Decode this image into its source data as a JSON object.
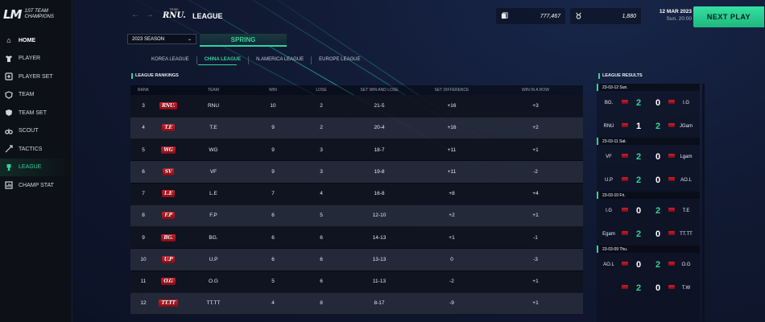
{
  "brand": {
    "logo": "LM",
    "line1": "1ST TEAM",
    "line2": "CHAMPIONS"
  },
  "sidebar": {
    "items": [
      {
        "label": "HOME",
        "icon": "home-icon"
      },
      {
        "label": "PLAYER",
        "icon": "shirt-icon"
      },
      {
        "label": "PLAYER SET",
        "icon": "player-set-icon"
      },
      {
        "label": "TEAM",
        "icon": "team-icon"
      },
      {
        "label": "TEAM SET",
        "icon": "team-set-icon"
      },
      {
        "label": "SCOUT",
        "icon": "binoculars-icon"
      },
      {
        "label": "TACTICS",
        "icon": "tactics-icon"
      },
      {
        "label": "LEAGUE",
        "icon": "trophy-icon"
      },
      {
        "label": "CHAMP STAT",
        "icon": "chart-icon"
      }
    ],
    "active": "LEAGUE"
  },
  "header": {
    "league_logo_text": "RNU.",
    "league_logo_small": "TRIBE",
    "title": "LEAGUE",
    "resource1": {
      "icon": "card-icon",
      "value": "777,467"
    },
    "resource2": {
      "icon": "medal-icon",
      "value": "1,880"
    },
    "date": "12 MAR 2023",
    "time": "Sun. 20:00",
    "next_play": "NEXT PLAY"
  },
  "season": {
    "selected": "2023 SEASON",
    "tab": "SPRING"
  },
  "regions": [
    "KOREA LEAGUE",
    "CHINA LEAGUE",
    "N.AMERICA LEAGUE",
    "EUROPE LEAGUE"
  ],
  "active_region": "CHINA LEAGUE",
  "rankings": {
    "title": "LEAGUE RANKINGS",
    "headers": [
      "RANK",
      "TEAM",
      "WIN",
      "LOSE",
      "SET WIN AND LOSE",
      "SET DIFFERENCE",
      "WIN IN A ROW"
    ],
    "rows": [
      {
        "rank": "3",
        "logo": "RNU.",
        "team": "RNU",
        "win": "10",
        "lose": "2",
        "swl": "21-5",
        "sd": "+16",
        "wr": "+3"
      },
      {
        "rank": "4",
        "logo": "T.E",
        "team": "T.E",
        "win": "9",
        "lose": "2",
        "swl": "20-4",
        "sd": "+16",
        "wr": "+2"
      },
      {
        "rank": "5",
        "logo": "WG",
        "team": "WG",
        "win": "9",
        "lose": "3",
        "swl": "18-7",
        "sd": "+11",
        "wr": "+1"
      },
      {
        "rank": "6",
        "logo": "SV",
        "team": "VF",
        "win": "9",
        "lose": "3",
        "swl": "19-8",
        "sd": "+11",
        "wr": "-2"
      },
      {
        "rank": "7",
        "logo": "L.E",
        "team": "L.E",
        "win": "7",
        "lose": "4",
        "swl": "16-8",
        "sd": "+8",
        "wr": "+4"
      },
      {
        "rank": "8",
        "logo": "F.P",
        "team": "F.P",
        "win": "6",
        "lose": "5",
        "swl": "12-10",
        "sd": "+2",
        "wr": "+1"
      },
      {
        "rank": "9",
        "logo": "BG.",
        "team": "BG.",
        "win": "6",
        "lose": "6",
        "swl": "14-13",
        "sd": "+1",
        "wr": "-1"
      },
      {
        "rank": "10",
        "logo": "U.P",
        "team": "U.P",
        "win": "6",
        "lose": "6",
        "swl": "13-13",
        "sd": "0",
        "wr": "-3"
      },
      {
        "rank": "11",
        "logo": "O.G",
        "team": "O.G",
        "win": "5",
        "lose": "6",
        "swl": "11-13",
        "sd": "-2",
        "wr": "+1"
      },
      {
        "rank": "12",
        "logo": "TT.TT",
        "team": "TT.TT",
        "win": "4",
        "lose": "8",
        "swl": "8-17",
        "sd": "-9",
        "wr": "+1"
      }
    ]
  },
  "results": {
    "title": "LEAGUE RESULTS",
    "days": [
      {
        "label": "23-03-12 Sun.",
        "matches": [
          {
            "t1": "BG.",
            "s1": "2",
            "s2": "0",
            "t2": "I.G",
            "winner": 1
          },
          {
            "t1": "RNU",
            "s1": "1",
            "s2": "2",
            "t2": "JGam",
            "winner": 2
          }
        ]
      },
      {
        "label": "23-03-11 Sat.",
        "matches": [
          {
            "t1": "VF",
            "s1": "2",
            "s2": "0",
            "t2": "Lgam",
            "winner": 1
          },
          {
            "t1": "U.P",
            "s1": "2",
            "s2": "0",
            "t2": "AO.L",
            "winner": 1
          }
        ]
      },
      {
        "label": "23-03-10 Fri.",
        "matches": [
          {
            "t1": "I.G",
            "s1": "0",
            "s2": "2",
            "t2": "T.E",
            "winner": 2
          },
          {
            "t1": "Egam",
            "s1": "2",
            "s2": "0",
            "t2": "TT.TT",
            "winner": 1
          }
        ]
      },
      {
        "label": "23-03-09 Thu.",
        "matches": [
          {
            "t1": "AO.L",
            "s1": "0",
            "s2": "2",
            "t2": "O.G",
            "winner": 2
          },
          {
            "t1": "",
            "s1": "2",
            "s2": "0",
            "t2": "T.W",
            "winner": 1
          }
        ]
      }
    ]
  },
  "colors": {
    "accent": "#34d399",
    "background": "#0b1020",
    "team_logo": "#c8141f"
  }
}
